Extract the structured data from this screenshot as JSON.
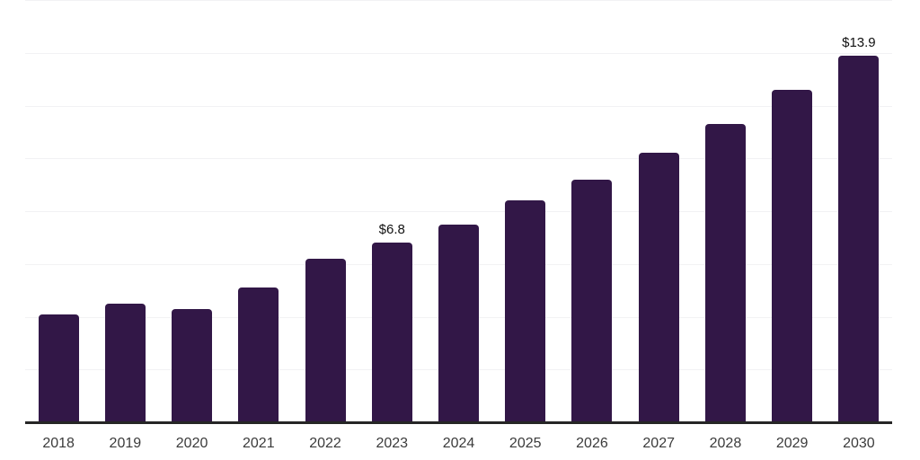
{
  "chart_data": {
    "type": "bar",
    "title": "",
    "xlabel": "",
    "ylabel": "",
    "categories": [
      "2018",
      "2019",
      "2020",
      "2021",
      "2022",
      "2023",
      "2024",
      "2025",
      "2026",
      "2027",
      "2028",
      "2029",
      "2030"
    ],
    "values": [
      4.1,
      4.5,
      4.3,
      5.1,
      6.2,
      6.8,
      7.5,
      8.4,
      9.2,
      10.2,
      11.3,
      12.6,
      13.9
    ],
    "point_labels": [
      "",
      "",
      "",
      "",
      "",
      "$6.8",
      "",
      "",
      "",
      "",
      "",
      "",
      "$13.9"
    ],
    "ylim": [
      0,
      16
    ],
    "gridline_interval": 2,
    "grid": true,
    "legend": false,
    "y_tick_labels_visible": false,
    "colors": {
      "bar": "#321747",
      "gridline": "#f2f2f4",
      "axis_line": "#262626",
      "tick_label": "#3b3b3b",
      "value_label": "#111111",
      "background": "#ffffff"
    }
  }
}
